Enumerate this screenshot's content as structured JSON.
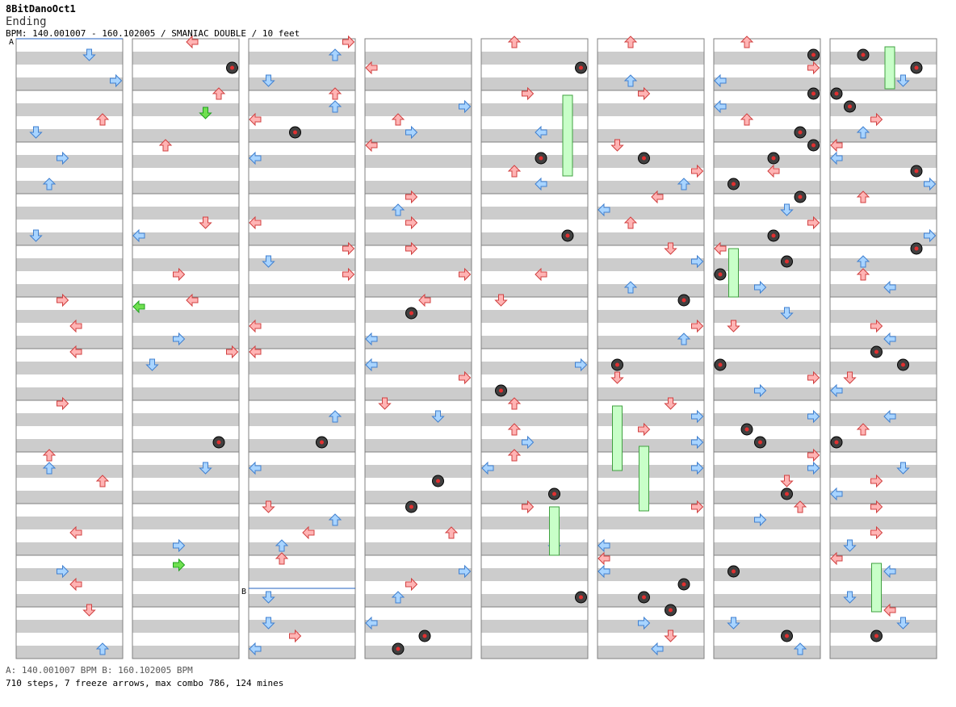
{
  "header": {
    "song_title": "8BitDanoOct1",
    "step_name": "Ending",
    "info_line": "BPM: 140.001007 - 160.102005 / SMANIAC DOUBLE / 10 feet"
  },
  "footer": {
    "bpm_legend": "A: 140.001007 BPM    B: 160.102005 BPM",
    "stats": "710 steps, 7 freeze arrows, max combo 786, 124 mines"
  },
  "chart_data": {
    "type": "table",
    "chart_kind": "dance stepchart",
    "mode": "SMANIAC DOUBLE",
    "lanes": 8,
    "columns": 8,
    "measures_per_column": 12,
    "bpm_markers": [
      {
        "label": "A",
        "bpm": 140.001007,
        "column": 0,
        "measure": 0
      },
      {
        "label": "B",
        "bpm": 160.102005,
        "column": 2,
        "measure": 10
      }
    ],
    "colors": {
      "quarter_note": "#ffb4b4",
      "eighth_note": "#a8d4ff",
      "sixteenth_note": "#70e050",
      "freeze": "#c8ffc8",
      "mine": "#404040",
      "stripe": "#cccccc"
    }
  }
}
